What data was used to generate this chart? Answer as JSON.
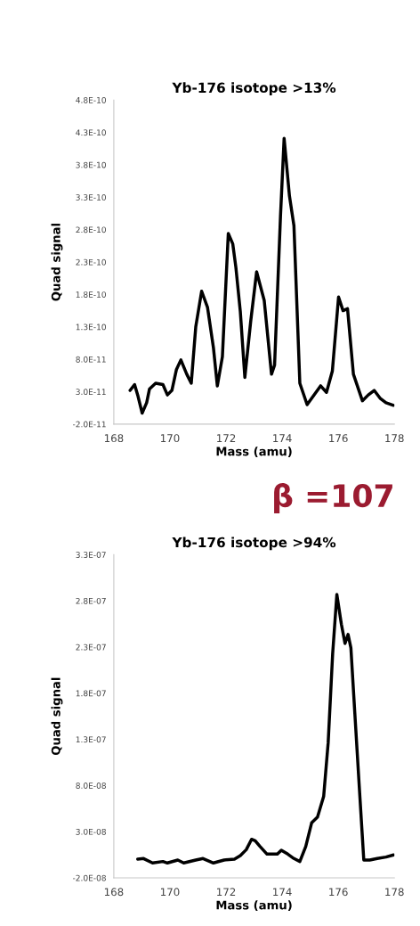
{
  "chart_data": [
    {
      "type": "line",
      "title": "Yb-176 isotope >13%",
      "xlabel": "Mass (amu)",
      "ylabel": "Quad signal",
      "x": [
        168.58,
        168.74,
        168.85,
        169.01,
        169.17,
        169.27,
        169.49,
        169.75,
        169.91,
        170.07,
        170.23,
        170.39,
        170.6,
        170.76,
        170.92,
        171.13,
        171.34,
        171.55,
        171.69,
        171.87,
        172.08,
        172.24,
        172.35,
        172.51,
        172.67,
        172.88,
        173.09,
        173.36,
        173.62,
        173.73,
        173.94,
        174.07,
        174.26,
        174.42,
        174.63,
        174.89,
        175.37,
        175.58,
        175.79,
        176.01,
        176.17,
        176.33,
        176.54,
        176.86,
        177.07,
        177.28,
        177.49,
        177.7,
        177.97
      ],
      "series": [
        {
          "color": "#000000",
          "values": [
            3.2e-11,
            4.1e-11,
            2.5e-11,
            -3e-12,
            1.3e-11,
            3.4e-11,
            4.3e-11,
            4.1e-11,
            2.5e-11,
            3.2e-11,
            6.4e-11,
            7.9e-11,
            5.7e-11,
            4.3e-11,
            1.3e-10,
            1.85e-10,
            1.6e-10,
            9.8e-11,
            3.9e-11,
            8.4e-11,
            2.74e-10,
            2.58e-10,
            2.22e-10,
            1.53e-10,
            5.2e-11,
            1.39e-10,
            2.15e-10,
            1.71e-10,
            5.7e-11,
            7.1e-11,
            3e-10,
            4.21e-10,
            3.32e-10,
            2.86e-10,
            4.3e-11,
            1e-11,
            3.9e-11,
            2.9e-11,
            6.2e-11,
            1.76e-10,
            1.55e-10,
            1.58e-10,
            5.7e-11,
            1.6e-11,
            2.5e-11,
            3.2e-11,
            2e-11,
            1.3e-11,
            9e-12
          ]
        }
      ],
      "xlim": [
        168,
        178
      ],
      "xticks": [
        168,
        170,
        172,
        174,
        176,
        178
      ],
      "ylim": [
        -2e-11,
        4.8e-10
      ],
      "yticks": [
        {
          "value": -2e-11,
          "label": "-2.0E-11"
        },
        {
          "value": 3e-11,
          "label": "3.0E-11"
        },
        {
          "value": 8e-11,
          "label": "8.0E-11"
        },
        {
          "value": 1.3e-10,
          "label": "1.3E-10"
        },
        {
          "value": 1.8e-10,
          "label": "1.8E-10"
        },
        {
          "value": 2.3e-10,
          "label": "2.3E-10"
        },
        {
          "value": 2.8e-10,
          "label": "2.8E-10"
        },
        {
          "value": 3.3e-10,
          "label": "3.3E-10"
        },
        {
          "value": 3.8e-10,
          "label": "3.8E-10"
        },
        {
          "value": 4.3e-10,
          "label": "4.3E-10"
        },
        {
          "value": 4.8e-10,
          "label": "4.8E-10"
        }
      ],
      "grid": false,
      "legend": false,
      "marker": "none",
      "line_style": "solid",
      "annotations": [
        "β =107"
      ]
    },
    {
      "type": "line",
      "title": "Yb-176 isotope >94%",
      "xlabel": "Mass (amu)",
      "ylabel": "Quad signal",
      "x": [
        168.85,
        169.06,
        169.38,
        169.75,
        169.91,
        170.28,
        170.49,
        170.92,
        171.18,
        171.55,
        171.93,
        172.3,
        172.51,
        172.72,
        172.91,
        173.04,
        173.2,
        173.46,
        173.83,
        173.97,
        174.2,
        174.42,
        174.63,
        174.84,
        175.05,
        175.26,
        175.48,
        175.64,
        175.8,
        175.95,
        176.11,
        176.24,
        176.35,
        176.45,
        176.59,
        176.75,
        176.91,
        177.12,
        177.39,
        177.7,
        177.97
      ],
      "series": [
        {
          "color": "#000000",
          "values": [
            3e-10,
            9e-10,
            -3.9e-09,
            -2.3e-09,
            -3.9e-09,
            -7e-10,
            -3.9e-09,
            -7e-10,
            9e-10,
            -3.9e-09,
            -7e-10,
            3e-10,
            4.1e-09,
            1.05e-08,
            2.18e-08,
            2.02e-08,
            1.44e-08,
            5.7e-09,
            5.7e-09,
            9.9e-09,
            5.7e-09,
            9e-10,
            -2.3e-09,
            1.38e-08,
            3.95e-08,
            4.59e-08,
            6.84e-08,
            1.263e-07,
            2.227e-07,
            2.87e-07,
            2.548e-07,
            2.339e-07,
            2.436e-07,
            2.291e-07,
            1.584e-07,
            7.8e-08,
            -7e-10,
            -7e-10,
            9e-10,
            2.5e-09,
            4.8e-09
          ]
        }
      ],
      "xlim": [
        168,
        178
      ],
      "xticks": [
        168,
        170,
        172,
        174,
        176,
        178
      ],
      "ylim": [
        -2e-08,
        3.3e-07
      ],
      "yticks": [
        {
          "value": -2e-08,
          "label": "-2.0E-08"
        },
        {
          "value": 3e-08,
          "label": "3.0E-08"
        },
        {
          "value": 8e-08,
          "label": "8.0E-08"
        },
        {
          "value": 1.3e-07,
          "label": "1.3E-07"
        },
        {
          "value": 1.8e-07,
          "label": "1.8E-07"
        },
        {
          "value": 2.3e-07,
          "label": "2.3E-07"
        },
        {
          "value": 2.8e-07,
          "label": "2.8E-07"
        },
        {
          "value": 3.3e-07,
          "label": "3.3E-07"
        }
      ],
      "grid": false,
      "legend": false,
      "marker": "none",
      "line_style": "solid"
    }
  ]
}
